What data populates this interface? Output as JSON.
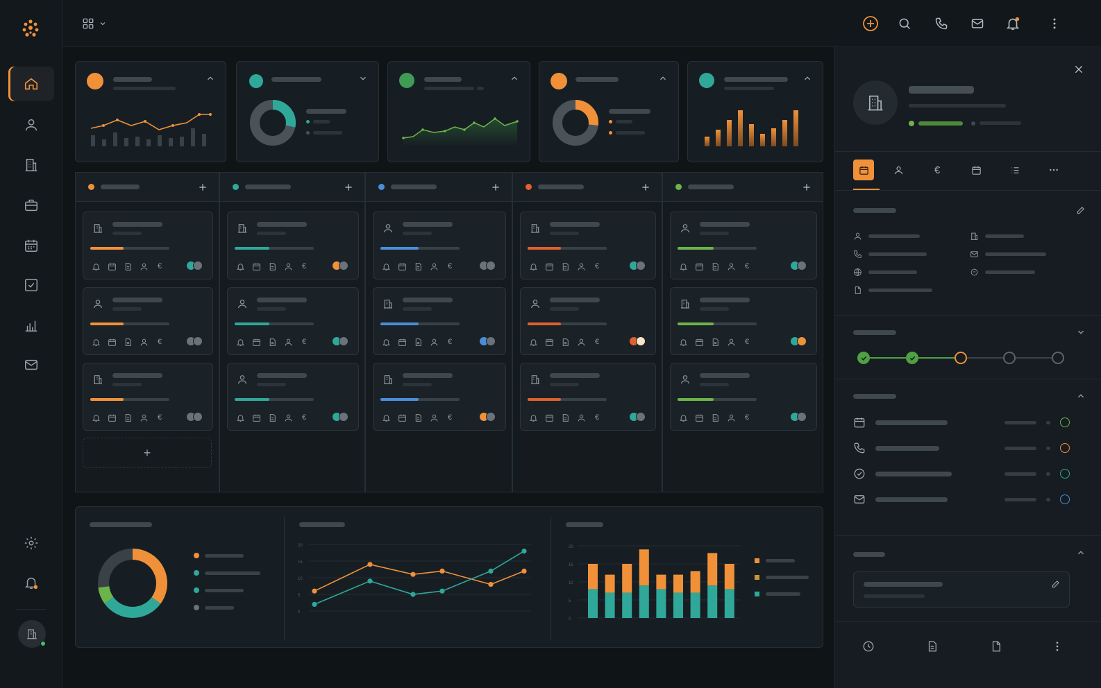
{
  "colors": {
    "orange": "#f0913a",
    "teal": "#2fa89a",
    "blue": "#4b8ed8",
    "red": "#e0602f",
    "green": "#6cb44a",
    "gray": "#6a737a"
  },
  "sidebar": {
    "items": [
      {
        "icon": "home-icon",
        "active": true
      },
      {
        "icon": "user-icon"
      },
      {
        "icon": "building-icon"
      },
      {
        "icon": "briefcase-icon"
      },
      {
        "icon": "calendar-icon"
      },
      {
        "icon": "checkbox-icon"
      },
      {
        "icon": "bar-chart-icon"
      },
      {
        "icon": "mail-icon"
      }
    ],
    "bottom_items": [
      {
        "icon": "settings-icon"
      },
      {
        "icon": "bell-icon"
      }
    ]
  },
  "topbar": {
    "icons": [
      "add-icon",
      "search-icon",
      "phone-icon",
      "mail-icon",
      "bell-icon",
      "more-vertical-icon"
    ]
  },
  "kpis": [
    {
      "color": "orange",
      "chart": "line-with-bars"
    },
    {
      "color": "teal",
      "chart": "donut"
    },
    {
      "color": "green",
      "chart": "line-area"
    },
    {
      "color": "orange",
      "chart": "donut"
    },
    {
      "color": "teal",
      "chart": "bars"
    }
  ],
  "columns": [
    {
      "color": "orange",
      "progress": 0.42,
      "progress_color": "#f0913a"
    },
    {
      "color": "teal",
      "progress": 0.44,
      "progress_color": "#2fa89a"
    },
    {
      "color": "blue",
      "progress": 0.48,
      "progress_color": "#4b8ed8"
    },
    {
      "color": "red",
      "progress": 0.42,
      "progress_color": "#e0602f"
    },
    {
      "color": "green",
      "progress": 0.46,
      "progress_color": "#6cb44a"
    }
  ],
  "add_card_label": "+",
  "chart_data": [
    {
      "type": "pie",
      "values": [
        35,
        30,
        8,
        27
      ],
      "colors": [
        "#f0913a",
        "#2fa89a",
        "#6cb44a",
        "#3a4248"
      ]
    },
    {
      "type": "line",
      "y_tick_labels": [
        "20",
        "15",
        "10",
        "5",
        "0"
      ],
      "series": [
        {
          "color": "#f0913a",
          "values": [
            6,
            14,
            11,
            12,
            8,
            12
          ]
        },
        {
          "color": "#2fa89a",
          "values": [
            2,
            9,
            5,
            6,
            12,
            18
          ]
        }
      ]
    },
    {
      "type": "bar",
      "y_tick_labels": [
        "20",
        "15",
        "10",
        "5",
        "0"
      ],
      "series": [
        {
          "color": "#2fa89a",
          "values": [
            8,
            7,
            7,
            9,
            8,
            7,
            7,
            9,
            8
          ]
        },
        {
          "color": "#f0913a",
          "values": [
            7,
            5,
            8,
            10,
            4,
            5,
            6,
            9,
            7
          ]
        }
      ]
    }
  ],
  "panel": {
    "tabs": [
      "calendar-icon",
      "user-icon",
      "euro-icon",
      "calendar-icon",
      "list-icon",
      "more-icon"
    ],
    "steps": [
      "done",
      "done",
      "current",
      "todo",
      "todo"
    ],
    "activities": [
      {
        "icon": "calendar-icon",
        "color": "#6cb44a"
      },
      {
        "icon": "phone-icon",
        "color": "#f0913a"
      },
      {
        "icon": "check-circle-icon",
        "color": "#2fa89a"
      },
      {
        "icon": "mail-icon",
        "color": "#4b8ed8"
      }
    ],
    "footer": [
      "clock-icon",
      "document-icon",
      "file-icon",
      "more-vertical-icon"
    ]
  }
}
